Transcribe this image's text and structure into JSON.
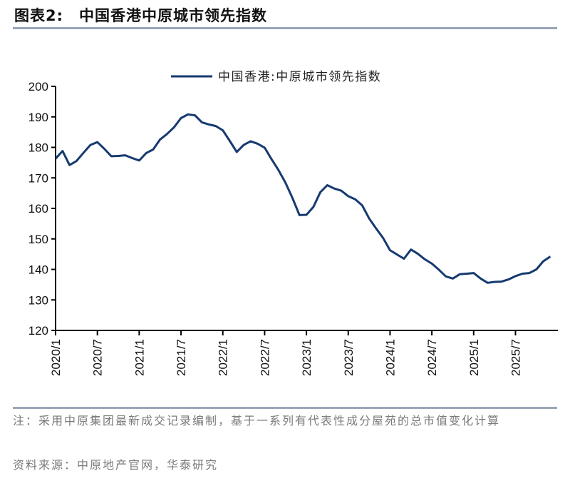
{
  "header": {
    "figure_label": "图表2:",
    "title": "中国香港中原城市领先指数"
  },
  "footer": {
    "note": "注：采用中原集团最新成交记录编制，基于一系列有代表性成分屋苑的总市值变化计算",
    "source": "资料来源：中原地产官网，华泰研究"
  },
  "chart_data": {
    "type": "line",
    "title": "",
    "xlabel": "",
    "ylabel": "",
    "ylim": [
      120,
      200
    ],
    "yticks": [
      120,
      130,
      140,
      150,
      160,
      170,
      180,
      190,
      200
    ],
    "xticks": [
      "2020/1",
      "2020/7",
      "2021/1",
      "2021/7",
      "2022/1",
      "2022/7",
      "2023/1",
      "2023/7",
      "2024/1",
      "2024/7",
      "2025/1",
      "2025/7"
    ],
    "x_start": "2020/1",
    "x_end": "2025/12",
    "grid": false,
    "legend": "top-center",
    "line_color": "#163a70",
    "series": [
      {
        "name": "中国香港:中原城市领先指数",
        "x": [
          "2020/1",
          "2020/2",
          "2020/3",
          "2020/4",
          "2020/5",
          "2020/6",
          "2020/7",
          "2020/8",
          "2020/9",
          "2020/10",
          "2020/11",
          "2020/12",
          "2021/1",
          "2021/2",
          "2021/3",
          "2021/4",
          "2021/5",
          "2021/6",
          "2021/7",
          "2021/8",
          "2021/9",
          "2021/10",
          "2021/11",
          "2021/12",
          "2022/1",
          "2022/2",
          "2022/3",
          "2022/4",
          "2022/5",
          "2022/6",
          "2022/7",
          "2022/8",
          "2022/9",
          "2022/10",
          "2022/11",
          "2022/12",
          "2023/1",
          "2023/2",
          "2023/3",
          "2023/4",
          "2023/5",
          "2023/6",
          "2023/7",
          "2023/8",
          "2023/9",
          "2023/10",
          "2023/11",
          "2023/12",
          "2024/1",
          "2024/2",
          "2024/3",
          "2024/4",
          "2024/5",
          "2024/6",
          "2024/7",
          "2024/8",
          "2024/9",
          "2024/10",
          "2024/11",
          "2024/12",
          "2025/1",
          "2025/2",
          "2025/3",
          "2025/4",
          "2025/5",
          "2025/6",
          "2025/7",
          "2025/8",
          "2025/9",
          "2025/10",
          "2025/11",
          "2025/12"
        ],
        "values": [
          176.3,
          178.8,
          174.2,
          175.5,
          178.2,
          180.8,
          181.7,
          179.5,
          177.1,
          177.2,
          177.4,
          176.5,
          175.7,
          178.1,
          179.3,
          182.6,
          184.4,
          186.6,
          189.6,
          190.8,
          190.5,
          188.2,
          187.5,
          187.0,
          185.6,
          182.1,
          178.5,
          180.8,
          182.0,
          181.2,
          179.9,
          176.1,
          172.5,
          168.4,
          163.4,
          157.8,
          157.9,
          160.5,
          165.3,
          167.6,
          166.5,
          165.8,
          164.0,
          163.0,
          161.0,
          156.7,
          153.4,
          150.3,
          146.3,
          144.9,
          143.5,
          146.5,
          145.1,
          143.3,
          141.9,
          139.9,
          137.7,
          137.0,
          138.4,
          138.6,
          138.8,
          137.0,
          135.6,
          135.9,
          136.0,
          136.7,
          137.8,
          138.6,
          138.8,
          140.0,
          142.7,
          144.2
        ]
      }
    ]
  }
}
